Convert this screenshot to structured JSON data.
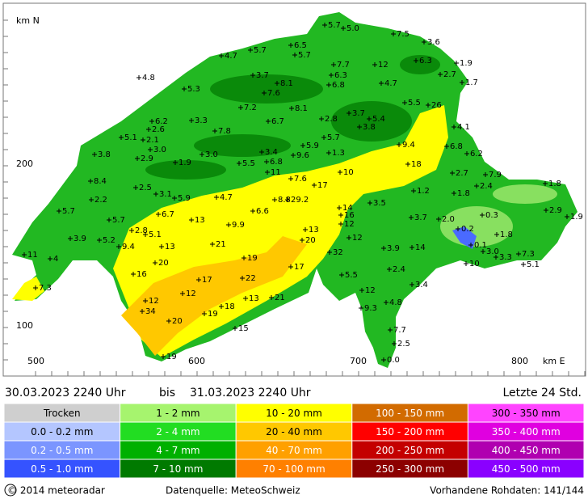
{
  "map": {
    "axis": {
      "y_unit": "km N",
      "x_unit": "km E",
      "y_labels": [
        "200",
        "100"
      ],
      "x_labels": [
        "500",
        "600",
        "700",
        "800"
      ]
    },
    "stations": [
      "5.7",
      "5.0",
      "7.5",
      "3.6",
      "5.7",
      "6.5",
      "5.7",
      "4.7",
      "4.8",
      "7.7",
      "12",
      "6.3",
      "1.9",
      "3.7",
      "8.1",
      "6.3",
      "6.8",
      "2.7",
      "1.7",
      "5.3",
      "7.6",
      "4.7",
      "7.2",
      "8.1",
      "5.5",
      "26",
      "3.7",
      "3.3",
      "6.7",
      "2.8",
      "5.4",
      "6.2",
      "2.6",
      "7.8",
      "3.8",
      "5.1",
      "2.1",
      "4.1",
      "3.0",
      "2.9",
      "5.7",
      "9.4",
      "5.9",
      "3.8",
      "3.4",
      "3.0",
      "9.6",
      "6.8",
      "6.2",
      "1.3",
      "1.9",
      "5.5",
      "6.8",
      "18",
      "11",
      "10",
      "8.4",
      "2.5",
      "7.6",
      "2.7",
      "7.9",
      "17",
      "2.4",
      "2.2",
      "3.1",
      "4.7",
      "5.9",
      "8.8",
      "29.2",
      "1.2",
      "1.8",
      "1.8",
      "3.5",
      "14",
      "5.7",
      "6.6",
      "6.7",
      "16",
      "12",
      "0.3",
      "2.9",
      "1.9",
      "5.7",
      "13",
      "9.9",
      "3.7",
      "2.0",
      "2.8",
      "5.1",
      "13",
      "3.9",
      "5.2",
      "9.4",
      "13",
      "21",
      "20",
      "12",
      "0.2",
      "1.8",
      "11",
      "4",
      "0.1",
      "3.9",
      "14",
      "32",
      "3.0",
      "3.3",
      "7.3",
      "20",
      "19",
      "5.1",
      "17",
      "10",
      "2.4",
      "16",
      "5.5",
      "17",
      "22",
      "3.4",
      "7.3",
      "12",
      "12",
      "12",
      "13",
      "21",
      "18",
      "19",
      "34",
      "9.3",
      "4.8",
      "20",
      "15",
      "7.7",
      "2.5",
      "0.0",
      "19"
    ]
  },
  "header": {
    "period_start": "30.03.2023 2240 Uhr",
    "separator": "bis",
    "period_end": "31.03.2023 2240 Uhr",
    "window": "Letzte 24 Std."
  },
  "legend": {
    "rows": [
      [
        "Trocken",
        "1 - 2 mm",
        "10 - 20 mm",
        "100 - 150 mm",
        "300 - 350 mm"
      ],
      [
        "0.0 - 0.2 mm",
        "2 - 4 mm",
        "20 - 40 mm",
        "150 - 200 mm",
        "350 - 400 mm"
      ],
      [
        "0.2 - 0.5 mm",
        "4 - 7 mm",
        "40 - 70 mm",
        "200 - 250 mm",
        "400 - 450 mm"
      ],
      [
        "0.5 - 1.0 mm",
        "7 - 10 mm",
        "70 - 100 mm",
        "250 - 300 mm",
        "450 - 500 mm"
      ]
    ]
  },
  "footer": {
    "copyright": "© 2014  meteoradar",
    "source": "Datenquelle: MeteoSchweiz",
    "raw": "Vorhandene Rohdaten: 141/144"
  }
}
